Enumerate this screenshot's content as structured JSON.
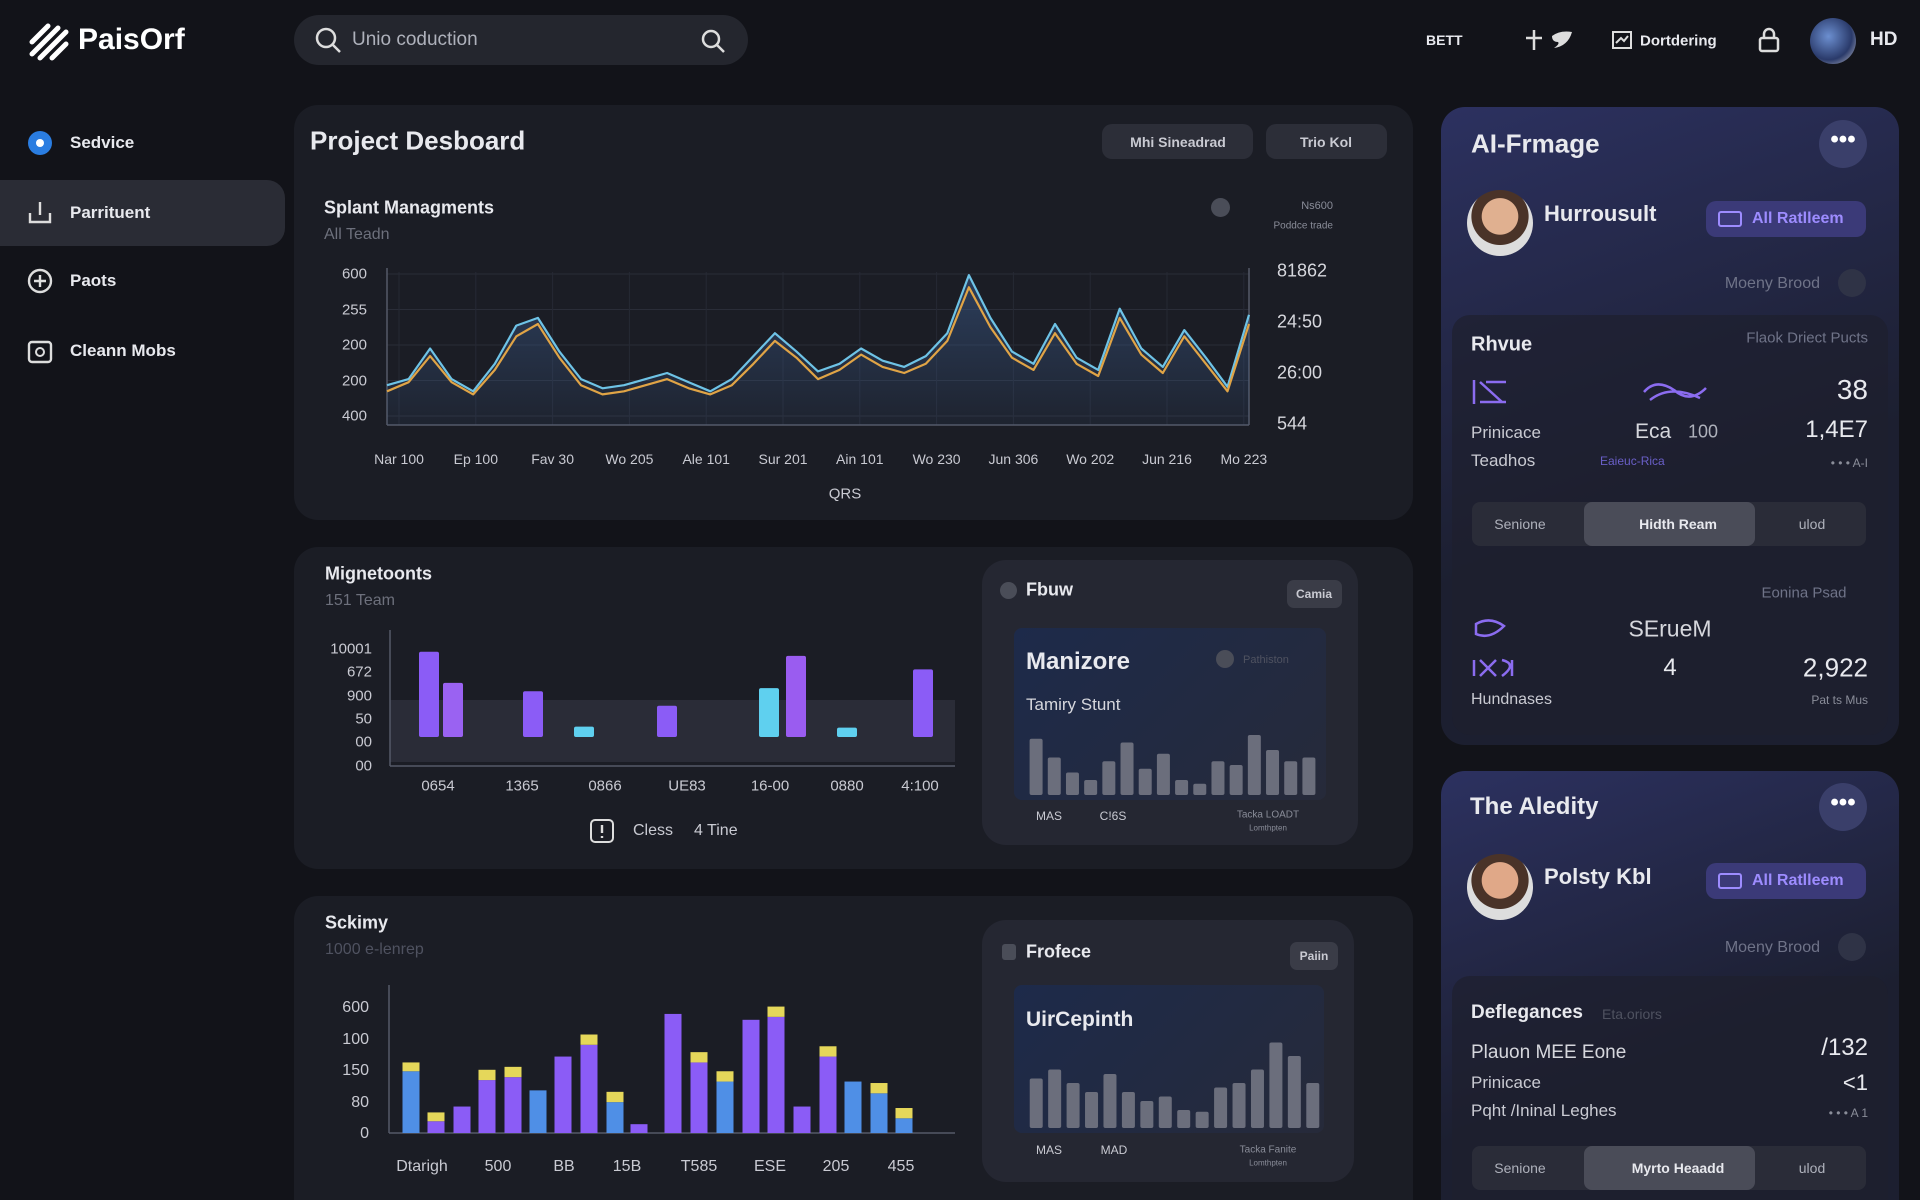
{
  "topbar": {
    "logo": "PaisOrf",
    "search_placeholder": "Unio coduction",
    "links": [
      "BETT",
      "Dortdering"
    ],
    "user": "HD"
  },
  "sidebar": [
    "Sedvice",
    "Parrituent",
    "Paots",
    "Cleann Mobs"
  ],
  "project_board": {
    "title": "Project Desboard",
    "buttons": [
      "Mhi Sineadrad",
      "Trio Kol"
    ],
    "chart_title": "Splant Managments",
    "chart_subtitle": "All Teadn",
    "legend": [
      "Ns600",
      "Poddce trade"
    ],
    "chart": {
      "type": "line",
      "y_labels": [
        "600",
        "255",
        "200",
        "200",
        "400"
      ],
      "y2_labels": [
        "81862",
        "24:50",
        "26:00",
        "544"
      ],
      "categories": [
        "Nar 100",
        "Ep 100",
        "Fav 30",
        "Wo 205",
        "Ale 101",
        "Sur 201",
        "Ain 101",
        "Wo 230",
        "Jun 306",
        "Wo 202",
        "Jun 216",
        "Mo 223"
      ],
      "x_label": "QRS",
      "ylim": [
        0,
        100
      ],
      "series": [
        {
          "color": "#6ec3e6",
          "values": [
            26,
            30,
            50,
            30,
            22,
            40,
            65,
            70,
            48,
            30,
            24,
            26,
            30,
            34,
            28,
            22,
            30,
            45,
            60,
            48,
            35,
            40,
            50,
            42,
            38,
            45,
            60,
            98,
            70,
            48,
            40,
            66,
            44,
            36,
            76,
            50,
            38,
            62,
            44,
            25,
            72
          ]
        },
        {
          "color": "#e0a446",
          "values": [
            22,
            28,
            45,
            28,
            20,
            36,
            58,
            66,
            44,
            26,
            20,
            22,
            26,
            30,
            24,
            20,
            26,
            40,
            55,
            44,
            30,
            36,
            46,
            38,
            34,
            40,
            55,
            90,
            64,
            44,
            36,
            60,
            40,
            32,
            70,
            46,
            34,
            58,
            40,
            22,
            66
          ]
        }
      ]
    }
  },
  "team_panel": {
    "title": "Mignetoonts",
    "subtitle": "151 Team",
    "footer": [
      "Cless",
      "4 Tine"
    ],
    "chart": {
      "type": "bar",
      "y_labels": [
        "10001",
        "672",
        "900",
        "50",
        "00",
        "00"
      ],
      "x_labels": [
        "0654",
        "1365",
        "0866",
        "UE83",
        "16-00",
        "0880",
        "4:100"
      ],
      "ylim": [
        0,
        100
      ],
      "values": [
        82,
        52,
        44,
        10,
        30,
        47,
        78,
        9,
        65
      ],
      "colors": [
        "#8b5cf6",
        "#9a62f2",
        "#8b5cf6",
        "#5fd0ef",
        "#8b5cf6",
        "#5fd0ef",
        "#9a5cf0",
        "#5fd0ef",
        "#8b5cf6"
      ]
    },
    "card": {
      "title": "Fbuw",
      "button": "Camia",
      "heading": "Manizore",
      "tag": "Pathiston",
      "subheading": "Tamiry Stunt",
      "labels": [
        "MAS",
        "C!6S"
      ],
      "note": [
        "Tacka LOADT",
        "Lomthpten"
      ],
      "chart": {
        "type": "bar",
        "ylim": [
          0,
          100
        ],
        "color": "#6b6e7c",
        "values": [
          75,
          50,
          30,
          20,
          45,
          70,
          35,
          55,
          20,
          15,
          45,
          40,
          80,
          60,
          45,
          50
        ]
      }
    }
  },
  "scheme_panel": {
    "title": "Sckimy",
    "subtitle": "1000 e-lenrep",
    "chart": {
      "type": "stacked_bar",
      "y_labels": [
        "600",
        "100",
        "150",
        "80",
        "0"
      ],
      "x_labels": [
        "Dtarigh",
        "500",
        "BB",
        "15B",
        "T585",
        "ESE",
        "205",
        "455"
      ],
      "ylim": [
        0,
        100
      ],
      "values": [
        42,
        8,
        18,
        36,
        38,
        29,
        52,
        60,
        21,
        6,
        81,
        48,
        35,
        77,
        79,
        18,
        52,
        35,
        27,
        10
      ],
      "caps": [
        6,
        6,
        0,
        7,
        7,
        0,
        0,
        7,
        7,
        0,
        0,
        7,
        7,
        0,
        7,
        0,
        7,
        0,
        7,
        7
      ],
      "colors": [
        "#4f8fe6",
        "#8b5cf6",
        "#8b5cf6",
        "#8b5cf6",
        "#8b5cf6",
        "#4f8fe6",
        "#8b5cf6",
        "#8b5cf6",
        "#4f8fe6",
        "#8b5cf6",
        "#8b5cf6",
        "#8b5cf6",
        "#4f8fe6",
        "#8b5cf6",
        "#8b5cf6",
        "#8b5cf6",
        "#8b5cf6",
        "#4f8fe6",
        "#4f8fe6",
        "#4f8fe6"
      ],
      "cap_color": "#e5d75a"
    },
    "card": {
      "title": "Frofece",
      "button": "Paiin",
      "heading": "UirCepinth",
      "labels": [
        "MAS",
        "MAD"
      ],
      "note": [
        "Tacka Fanite",
        "Lomthpten"
      ],
      "chart": {
        "type": "bar",
        "ylim": [
          0,
          100
        ],
        "color": "#6b6e7c",
        "values": [
          55,
          65,
          50,
          40,
          60,
          40,
          30,
          35,
          20,
          18,
          45,
          50,
          65,
          95,
          80,
          50
        ]
      }
    }
  },
  "ai_card": {
    "title": "AI-Frmage",
    "name": "Hurrousult",
    "button": "All Ratlleem",
    "meta": "Moeny Brood",
    "section": {
      "title": "Rhvue",
      "hint": "Flaok Driect Pucts",
      "value_a": "38",
      "row1": [
        "Prinicace",
        "Eca",
        "100",
        "1,4E7"
      ],
      "row2": [
        "Teadhos",
        "Eaieuc-Rica",
        "• • • A-I"
      ],
      "tabs": [
        "Senione",
        "Hidth Ream",
        "ulod"
      ],
      "pager": "Eonina Psad",
      "row3": [
        "SEruеM"
      ],
      "row4": [
        "4",
        "2,922"
      ],
      "row5": [
        "Hundnases",
        "Pat ts Mus"
      ]
    }
  },
  "ability_card": {
    "title": "The Aledity",
    "name": "Polsty Kbl",
    "button": "All Ratlleem",
    "meta": "Moeny Brood",
    "section": {
      "title": "Deflegances",
      "hint": "Eta.oriors",
      "rows": [
        [
          "Plauon MEE Eone",
          "/132"
        ],
        [
          "Prinicace",
          "<1"
        ],
        [
          "Pqht /Ininal Leghes",
          "• • • A 1"
        ]
      ],
      "tabs": [
        "Senione",
        "Myrto Heaadd",
        "ulod"
      ]
    }
  }
}
